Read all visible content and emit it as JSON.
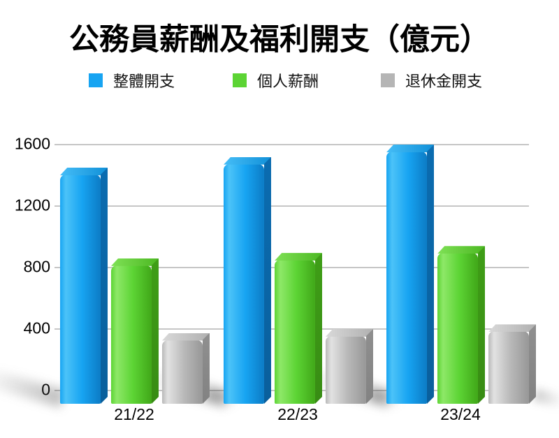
{
  "title": "公務員薪酬及福利開支（億元）",
  "chart_data": {
    "type": "bar",
    "title": "公務員薪酬及福利開支（億元）",
    "unit": "億元",
    "categories": [
      "21/22",
      "22/23",
      "23/24"
    ],
    "series": [
      {
        "id": "overall-expenditure",
        "name": "整體開支",
        "values": [
          1450,
          1520,
          1600
        ],
        "color": "#17a4f2",
        "palette": {
          "light": "#4cc3f8",
          "main": "#17a4f2",
          "dark": "#0d7fc9",
          "side": "#0b6cb0",
          "sidedark": "#0a5f9c",
          "top": "#45bdf7",
          "topdark": "#1190d8"
        }
      },
      {
        "id": "personal-emoluments",
        "name": "個人薪酬",
        "values": [
          860,
          895,
          940
        ],
        "color": "#5cd434",
        "palette": {
          "light": "#8ee868",
          "main": "#5cd434",
          "dark": "#43ab1b",
          "side": "#3f9e17",
          "sidedark": "#388c14",
          "top": "#7fe156",
          "topdark": "#4cb822"
        }
      },
      {
        "id": "pension-expenditure",
        "name": "退休金開支",
        "values": [
          375,
          400,
          430
        ],
        "color": "#b5b5b5",
        "palette": {
          "light": "#e2e2e2",
          "main": "#b9b9b9",
          "dark": "#9a9a9a",
          "side": "#8f8f8f",
          "sidedark": "#828282",
          "top": "#d9d9d9",
          "topdark": "#b0b0b0"
        }
      }
    ],
    "y_ticks": [
      0,
      400,
      800,
      1200,
      1600
    ],
    "ylim": [
      0,
      1600
    ],
    "xlabel": "",
    "ylabel": "",
    "grid": true,
    "legend_position": "top",
    "background": "#ffffff",
    "gridline_color": "#c6c6c6",
    "text_color": "#000000"
  }
}
